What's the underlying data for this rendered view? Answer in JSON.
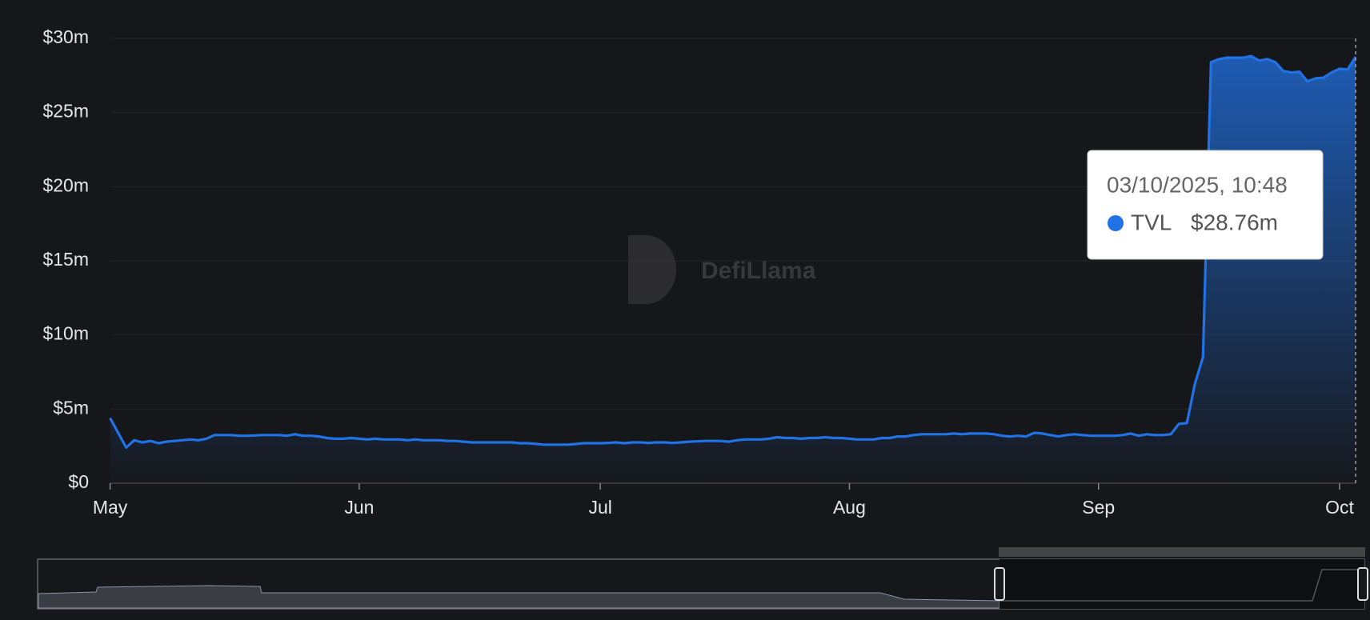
{
  "chart_data": {
    "type": "line",
    "watermark": "DefiLlama",
    "xlim": [
      0,
      155
    ],
    "xticks": [
      {
        "value": 0,
        "label": "May"
      },
      {
        "value": 31,
        "label": "Jun"
      },
      {
        "value": 61,
        "label": "Jul"
      },
      {
        "value": 92,
        "label": "Aug"
      },
      {
        "value": 123,
        "label": "Sep"
      },
      {
        "value": 153,
        "label": "Oct"
      }
    ],
    "ylim": [
      0,
      30
    ],
    "yticks": [
      {
        "value": 0,
        "label": "$0"
      },
      {
        "value": 5,
        "label": "$5m"
      },
      {
        "value": 10,
        "label": "$10m"
      },
      {
        "value": 15,
        "label": "$15m"
      },
      {
        "value": 20,
        "label": "$20m"
      },
      {
        "value": 25,
        "label": "$25m"
      },
      {
        "value": 30,
        "label": "$30m"
      }
    ],
    "grid": true,
    "series": [
      {
        "name": "TVL",
        "color": "#2172e5",
        "values": [
          4.4,
          3.4,
          2.4,
          2.9,
          2.75,
          2.85,
          2.7,
          2.8,
          2.85,
          2.9,
          2.95,
          2.9,
          3.0,
          3.25,
          3.25,
          3.25,
          3.2,
          3.2,
          3.22,
          3.25,
          3.25,
          3.25,
          3.2,
          3.3,
          3.2,
          3.2,
          3.15,
          3.05,
          3.0,
          3.0,
          3.05,
          3.0,
          2.95,
          3.0,
          2.95,
          2.95,
          2.95,
          2.9,
          2.95,
          2.9,
          2.9,
          2.9,
          2.85,
          2.85,
          2.8,
          2.75,
          2.75,
          2.75,
          2.75,
          2.75,
          2.75,
          2.7,
          2.7,
          2.65,
          2.6,
          2.6,
          2.6,
          2.6,
          2.65,
          2.7,
          2.7,
          2.7,
          2.72,
          2.75,
          2.7,
          2.75,
          2.75,
          2.72,
          2.75,
          2.75,
          2.72,
          2.75,
          2.8,
          2.82,
          2.85,
          2.85,
          2.85,
          2.8,
          2.9,
          2.95,
          2.95,
          2.95,
          3.0,
          3.1,
          3.05,
          3.05,
          3.0,
          3.05,
          3.05,
          3.1,
          3.05,
          3.05,
          3.0,
          2.95,
          2.95,
          2.95,
          3.05,
          3.05,
          3.15,
          3.15,
          3.25,
          3.3,
          3.3,
          3.3,
          3.3,
          3.35,
          3.3,
          3.35,
          3.35,
          3.35,
          3.3,
          3.2,
          3.15,
          3.2,
          3.15,
          3.4,
          3.35,
          3.25,
          3.15,
          3.25,
          3.3,
          3.25,
          3.2,
          3.2,
          3.2,
          3.2,
          3.25,
          3.35,
          3.2,
          3.3,
          3.25,
          3.25,
          3.3,
          4.0,
          4.05,
          6.7,
          8.5,
          28.4,
          28.6,
          28.7,
          28.7,
          28.7,
          28.8,
          28.5,
          28.6,
          28.4,
          27.8,
          27.7,
          27.75,
          27.1,
          27.3,
          27.35,
          27.7,
          27.95,
          27.9,
          28.76
        ]
      }
    ],
    "tooltip": {
      "date": "03/10/2025, 10:48",
      "value_label": "$28.76m"
    }
  }
}
